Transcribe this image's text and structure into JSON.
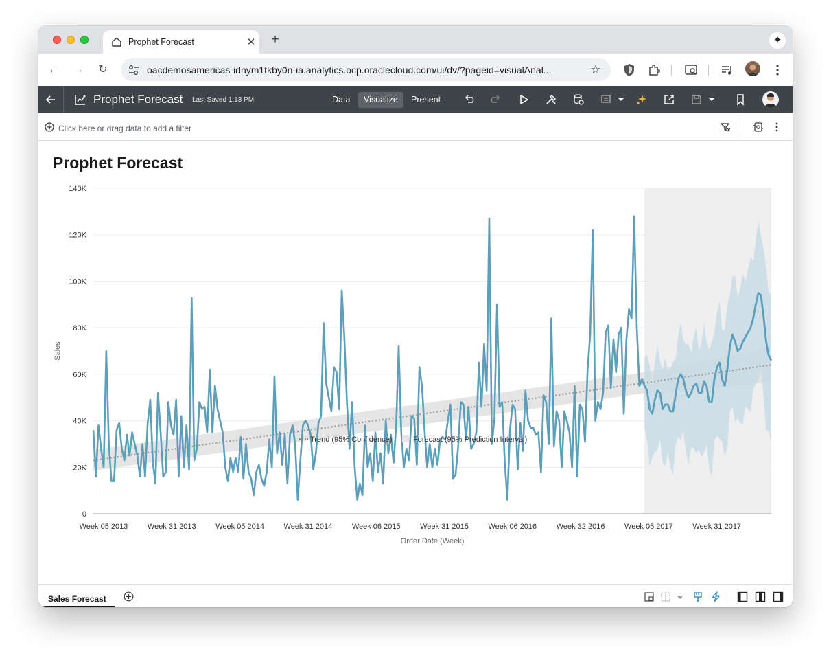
{
  "browser": {
    "tab_title": "Prophet Forecast",
    "url": "oacdemosamericas-idnym1tkby0n-ia.analytics.ocp.oraclecloud.com/ui/dv/?pageid=visualAnal..."
  },
  "app": {
    "title": "Prophet Forecast",
    "last_saved": "Last Saved 1:13 PM",
    "modes": [
      "Data",
      "Visualize",
      "Present"
    ],
    "active_mode": "Visualize"
  },
  "filter": {
    "hint": "Click here or drag data to add a filter"
  },
  "canvas": {
    "title": "Prophet Forecast"
  },
  "chart_data": {
    "type": "line",
    "ylabel": "Sales",
    "xlabel": "Order Date (Week)",
    "ylim": [
      0,
      140000
    ],
    "y_ticks": [
      "0",
      "20K",
      "40K",
      "60K",
      "80K",
      "100K",
      "120K",
      "140K"
    ],
    "x_ticks": [
      "Week 05 2013",
      "Week 31 2013",
      "Week 05 2014",
      "Week 31 2014",
      "Week 06 2015",
      "Week 31 2015",
      "Week 06 2016",
      "Week 32 2016",
      "Week 05 2017",
      "Week 31 2017"
    ],
    "legend": [
      "Trend (95% Confidence)",
      "Forecast (95% Prediction Interval)"
    ],
    "legend_position": "bottom",
    "grid": true,
    "colors": {
      "actual": "#5b9fbb",
      "trend": "#9a9a9a",
      "band": "#dcdcdc",
      "forecast_band": "#c7dbe5",
      "forecast_region": "#efefef"
    },
    "actual": [
      36000,
      16000,
      38000,
      28000,
      20000,
      70000,
      30000,
      14000,
      14000,
      36000,
      39000,
      28000,
      23000,
      34000,
      25000,
      35000,
      30000,
      25000,
      16000,
      30000,
      16000,
      39000,
      49000,
      22000,
      13000,
      52000,
      35000,
      16000,
      18000,
      48000,
      38000,
      34000,
      49000,
      16000,
      42000,
      20000,
      38000,
      19000,
      93000,
      23000,
      28000,
      48000,
      45000,
      46000,
      35000,
      62000,
      35000,
      55000,
      45000,
      40000,
      35000,
      20000,
      14000,
      24000,
      18000,
      24000,
      18000,
      33000,
      15000,
      30000,
      18000,
      15000,
      8000,
      18000,
      21000,
      15000,
      12000,
      18000,
      32000,
      20000,
      59000,
      26000,
      35000,
      21000,
      34000,
      13000,
      34000,
      38000,
      30000,
      6000,
      23000,
      38000,
      40000,
      38000,
      34000,
      19000,
      26000,
      39000,
      42000,
      82000,
      56000,
      50000,
      44000,
      63000,
      61000,
      45000,
      96000,
      76000,
      48000,
      28000,
      48000,
      20000,
      6000,
      13000,
      8000,
      38000,
      20000,
      26000,
      14000,
      35000,
      18000,
      26000,
      13000,
      40000,
      26000,
      34000,
      22000,
      37000,
      72000,
      35000,
      20000,
      28000,
      23000,
      42000,
      41000,
      21000,
      63000,
      55000,
      36000,
      20000,
      30000,
      20000,
      28000,
      21000,
      32000,
      33000,
      32000,
      40000,
      47000,
      15000,
      17000,
      29000,
      48000,
      47000,
      32000,
      46000,
      28000,
      30000,
      35000,
      65000,
      46000,
      73000,
      53000,
      127000,
      30000,
      41000,
      90000,
      46000,
      48000,
      22000,
      6000,
      36000,
      47000,
      45000,
      19000,
      39000,
      27000,
      53000,
      40000,
      37000,
      37000,
      34000,
      35000,
      18000,
      51000,
      48000,
      30000,
      84000,
      29000,
      44000,
      40000,
      20000,
      44000,
      40000,
      35000,
      20000,
      55000,
      16000,
      47000,
      45000,
      31000,
      62000,
      77000,
      122000,
      40000,
      48000,
      45000,
      52000,
      78000,
      81000,
      54000,
      75000,
      61000,
      77000,
      80000,
      43000,
      75000,
      88000,
      84000,
      128000,
      81000,
      55000,
      58000
    ],
    "trend_start": 23000,
    "trend_end": 64000,
    "forecast": [
      55000,
      53000,
      45000,
      43000,
      49000,
      53000,
      52000,
      45000,
      47000,
      47000,
      44000,
      44000,
      51000,
      58000,
      60000,
      58000,
      53000,
      50000,
      52000,
      55000,
      56000,
      52000,
      52000,
      57000,
      55000,
      48000,
      48000,
      58000,
      63000,
      65000,
      58000,
      55000,
      62000,
      72000,
      77000,
      74000,
      70000,
      71000,
      74000,
      76000,
      78000,
      80000,
      84000,
      90000,
      95000,
      94000,
      85000,
      74000,
      68000,
      66000
    ]
  },
  "sheets": [
    "Sales Forecast"
  ]
}
